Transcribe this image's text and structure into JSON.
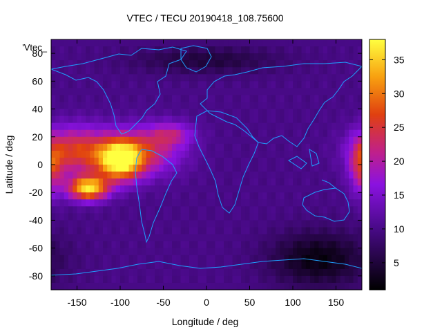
{
  "chart_data": {
    "type": "heatmap",
    "title": "VTEC / TECU 20190418_108.75600",
    "xlabel": "Longitude / deg",
    "ylabel": "Latitude / deg",
    "legend_label": "'Vtec_",
    "xlim": [
      -180,
      180
    ],
    "ylim": [
      -90,
      90
    ],
    "xticks": [
      -150,
      -100,
      -50,
      0,
      50,
      100,
      150
    ],
    "yticks": [
      -80,
      -60,
      -40,
      -20,
      0,
      20,
      40,
      60,
      80
    ],
    "colorbar": {
      "min": 1,
      "max": 38,
      "ticks": [
        5,
        10,
        15,
        20,
        25,
        30,
        35
      ]
    },
    "background_value": 10,
    "features": [
      {
        "lon": -100,
        "lat": 3,
        "value": 37,
        "sx": 18,
        "sy": 10
      },
      {
        "lon": -137,
        "lat": -17,
        "value": 36,
        "sx": 16,
        "sy": 6
      },
      {
        "lon": -150,
        "lat": 10,
        "value": 26,
        "sx": 28,
        "sy": 12
      },
      {
        "lon": -70,
        "lat": 10,
        "value": 22,
        "sx": 30,
        "sy": 12
      },
      {
        "lon": -40,
        "lat": 22,
        "value": 18,
        "sx": 18,
        "sy": 6
      },
      {
        "lon": 180,
        "lat": -2,
        "value": 22,
        "sx": 10,
        "sy": 14
      },
      {
        "lon": 130,
        "lat": -68,
        "value": 2,
        "sx": 40,
        "sy": 14
      },
      {
        "lon": 0,
        "lat": 75,
        "value": 5,
        "sx": 60,
        "sy": 7
      }
    ]
  }
}
